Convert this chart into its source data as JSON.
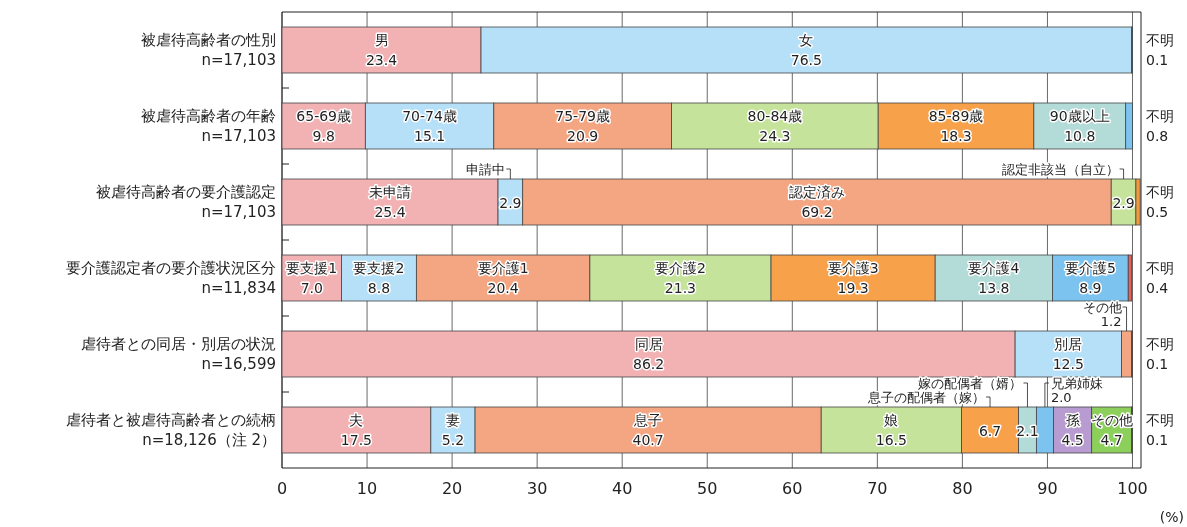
{
  "chart_data": [
    {
      "type": "bar",
      "orientation": "horizontal",
      "stacked": true,
      "categories": [
        "被虐待高齢者の性別\nn=17,103"
      ],
      "xlim": [
        0,
        101
      ],
      "xticks": [
        0,
        10,
        20,
        30,
        40,
        50,
        60,
        70,
        80,
        90,
        100
      ],
      "grid": "x",
      "tick_labels": "y",
      "series": [
        {
          "name": "男",
          "color": "#f2b2b3",
          "values": [
            23.4
          ],
          "value_labels": [
            "23.4"
          ]
        },
        {
          "name": "女",
          "color": "#b5e0f7",
          "values": [
            76.5
          ],
          "value_labels": [
            "76.5"
          ]
        },
        {
          "name": "不明",
          "color": "#5aa0d8",
          "values": [
            0.1
          ],
          "value_labels": [
            "0.1"
          ]
        }
      ]
    },
    {
      "type": "bar",
      "orientation": "horizontal",
      "stacked": true,
      "categories": [
        "被虐待高齢者の年齢\nn=17,103"
      ],
      "xlim": [
        0,
        101
      ],
      "xticks": [
        0,
        10,
        20,
        30,
        40,
        50,
        60,
        70,
        80,
        90,
        100
      ],
      "grid": "x",
      "tick_labels": "y",
      "series": [
        {
          "name": "65-69歳",
          "color": "#f2b2b3",
          "values": [
            9.8
          ],
          "value_labels": [
            "9.8"
          ]
        },
        {
          "name": "70-74歳",
          "color": "#b5e0f7",
          "values": [
            15.1
          ],
          "value_labels": [
            "15.1"
          ]
        },
        {
          "name": "75-79歳",
          "color": "#f4a582",
          "values": [
            20.9
          ],
          "value_labels": [
            "20.9"
          ]
        },
        {
          "name": "80-84歳",
          "color": "#c5e39a",
          "values": [
            24.3
          ],
          "value_labels": [
            "24.3"
          ]
        },
        {
          "name": "85-89歳",
          "color": "#f7a24a",
          "values": [
            18.3
          ],
          "value_labels": [
            "18.3"
          ]
        },
        {
          "name": "90歳以上",
          "color": "#b3dcd9",
          "values": [
            10.8
          ],
          "value_labels": [
            "10.8"
          ]
        },
        {
          "name": "不明",
          "color": "#7cc4ef",
          "values": [
            0.8
          ],
          "value_labels": [
            "0.8"
          ]
        }
      ]
    },
    {
      "type": "bar",
      "orientation": "horizontal",
      "stacked": true,
      "categories": [
        "被虐待高齢者の要介護認定\nn=17,103"
      ],
      "xlim": [
        0,
        101
      ],
      "xticks": [
        0,
        10,
        20,
        30,
        40,
        50,
        60,
        70,
        80,
        90,
        100
      ],
      "grid": "x",
      "tick_labels": "y",
      "series": [
        {
          "name": "未申請",
          "color": "#f2b2b3",
          "values": [
            25.4
          ],
          "value_labels": [
            "25.4"
          ]
        },
        {
          "name": "申請中",
          "color": "#b5e0f7",
          "values": [
            2.9
          ],
          "value_labels": [
            "2.9"
          ]
        },
        {
          "name": "認定済み",
          "color": "#f4a582",
          "values": [
            69.2
          ],
          "value_labels": [
            "69.2"
          ]
        },
        {
          "name": "認定非該当（自立）",
          "color": "#c5e39a",
          "values": [
            2.9
          ],
          "value_labels": [
            "2.9"
          ]
        },
        {
          "name": "不明",
          "color": "#f39a3c",
          "values": [
            0.5
          ],
          "value_labels": [
            "0.5"
          ]
        }
      ]
    },
    {
      "type": "bar",
      "orientation": "horizontal",
      "stacked": true,
      "categories": [
        "要介護認定者の要介護状況区分\nn=11,834"
      ],
      "xlim": [
        0,
        101
      ],
      "xticks": [
        0,
        10,
        20,
        30,
        40,
        50,
        60,
        70,
        80,
        90,
        100
      ],
      "grid": "x",
      "tick_labels": "y",
      "series": [
        {
          "name": "要支援1",
          "color": "#f2b2b3",
          "values": [
            7.0
          ],
          "value_labels": [
            "7.0"
          ]
        },
        {
          "name": "要支援2",
          "color": "#b5e0f7",
          "values": [
            8.8
          ],
          "value_labels": [
            "8.8"
          ]
        },
        {
          "name": "要介護1",
          "color": "#f4a582",
          "values": [
            20.4
          ],
          "value_labels": [
            "20.4"
          ]
        },
        {
          "name": "要介護2",
          "color": "#c5e39a",
          "values": [
            21.3
          ],
          "value_labels": [
            "21.3"
          ]
        },
        {
          "name": "要介護3",
          "color": "#f7a24a",
          "values": [
            19.3
          ],
          "value_labels": [
            "19.3"
          ]
        },
        {
          "name": "要介護4",
          "color": "#b3dcd9",
          "values": [
            13.8
          ],
          "value_labels": [
            "13.8"
          ]
        },
        {
          "name": "要介護5",
          "color": "#7cc4ef",
          "values": [
            8.9
          ],
          "value_labels": [
            "8.9"
          ]
        },
        {
          "name": "不明",
          "color": "#e8605a",
          "values": [
            0.4
          ],
          "value_labels": [
            "0.4"
          ]
        }
      ]
    },
    {
      "type": "bar",
      "orientation": "horizontal",
      "stacked": true,
      "categories": [
        "虐待者との同居・別居の状況\nn=16,599"
      ],
      "xlim": [
        0,
        101
      ],
      "xticks": [
        0,
        10,
        20,
        30,
        40,
        50,
        60,
        70,
        80,
        90,
        100
      ],
      "grid": "x",
      "tick_labels": "y",
      "series": [
        {
          "name": "同居",
          "color": "#f2b2b3",
          "values": [
            86.2
          ],
          "value_labels": [
            "86.2"
          ]
        },
        {
          "name": "別居",
          "color": "#b5e0f7",
          "values": [
            12.5
          ],
          "value_labels": [
            "12.5"
          ]
        },
        {
          "name": "その他",
          "color": "#f4a582",
          "values": [
            1.2
          ],
          "value_labels": [
            "1.2"
          ]
        },
        {
          "name": "不明",
          "color": "#e8605a",
          "values": [
            0.1
          ],
          "value_labels": [
            "0.1"
          ]
        }
      ]
    },
    {
      "type": "bar",
      "orientation": "horizontal",
      "stacked": true,
      "categories": [
        "虐待者と被虐待高齢者との続柄\nn=18,126（注 2）"
      ],
      "xlim": [
        0,
        101
      ],
      "xticks": [
        0,
        10,
        20,
        30,
        40,
        50,
        60,
        70,
        80,
        90,
        100
      ],
      "grid": "x",
      "xlabel": "(%)",
      "series": [
        {
          "name": "夫",
          "color": "#f2b2b3",
          "values": [
            17.5
          ],
          "value_labels": [
            "17.5"
          ]
        },
        {
          "name": "妻",
          "color": "#b5e0f7",
          "values": [
            5.2
          ],
          "value_labels": [
            "5.2"
          ]
        },
        {
          "name": "息子",
          "color": "#f4a582",
          "values": [
            40.7
          ],
          "value_labels": [
            "40.7"
          ]
        },
        {
          "name": "娘",
          "color": "#c5e39a",
          "values": [
            16.5
          ],
          "value_labels": [
            "16.5"
          ]
        },
        {
          "name": "息子の配偶者（嫁）",
          "color": "#f7a24a",
          "values": [
            6.7
          ],
          "value_labels": [
            "6.7"
          ]
        },
        {
          "name": "嫁の配偶者（婿）",
          "color": "#b3dcd9",
          "values": [
            2.1
          ],
          "value_labels": [
            "2.1"
          ]
        },
        {
          "name": "兄弟姉妹",
          "color": "#7cc4ef",
          "values": [
            2.0
          ],
          "value_labels": [
            "2.0"
          ]
        },
        {
          "name": "孫",
          "color": "#b89bd1",
          "values": [
            4.5
          ],
          "value_labels": [
            "4.5"
          ]
        },
        {
          "name": "その他",
          "color": "#8ccf5a",
          "values": [
            4.7
          ],
          "value_labels": [
            "4.7"
          ]
        },
        {
          "name": "不明",
          "color": "#888888",
          "values": [
            0.1
          ],
          "value_labels": [
            "0.1"
          ]
        }
      ]
    }
  ]
}
